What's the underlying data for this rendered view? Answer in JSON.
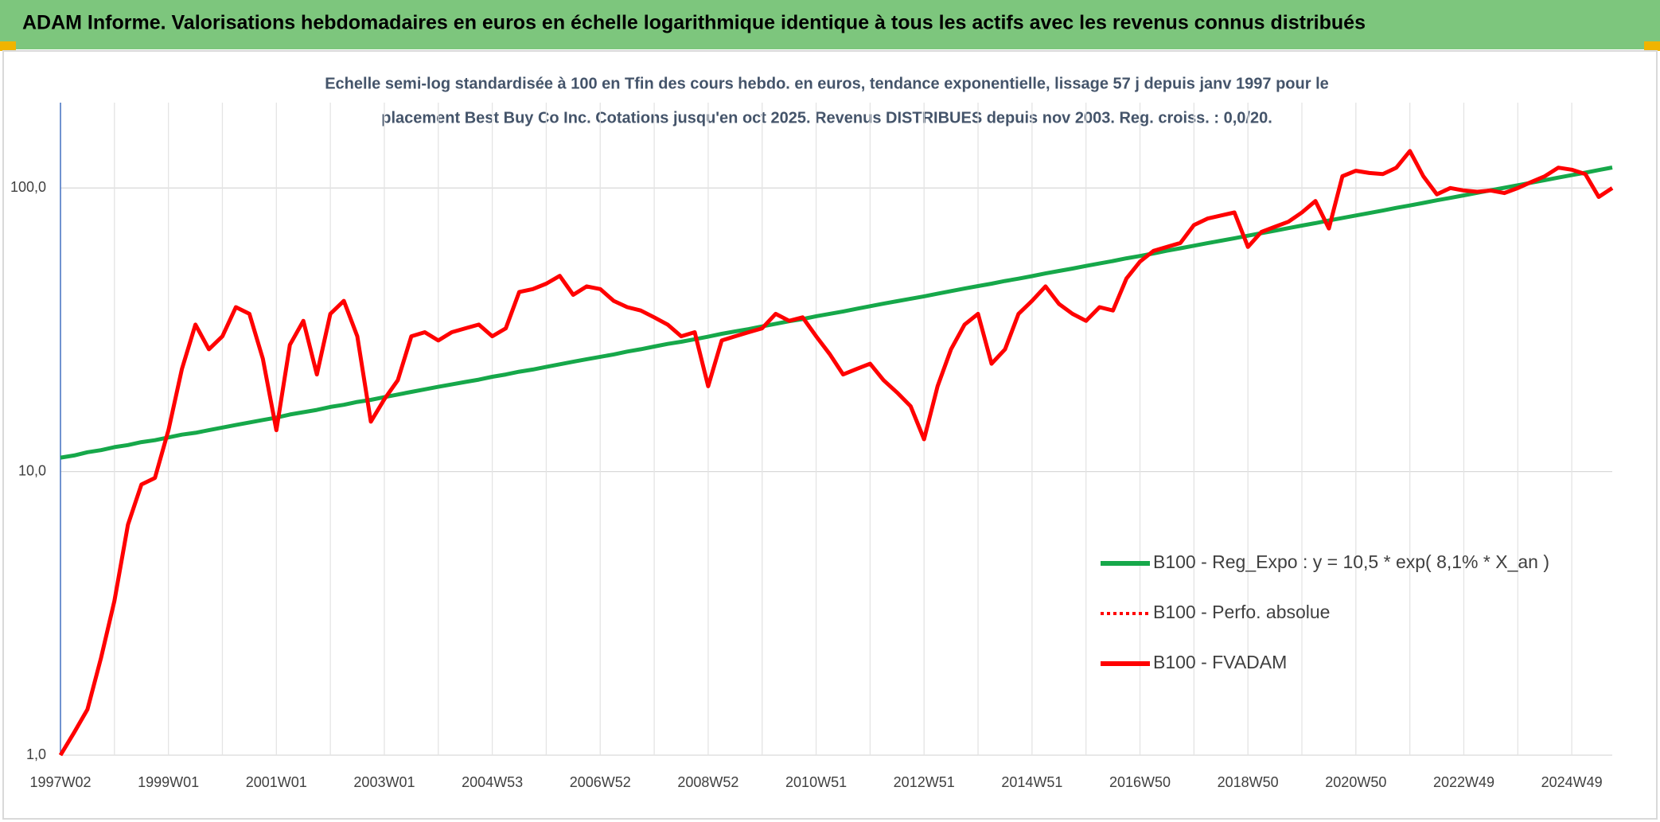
{
  "chart_data": {
    "type": "line",
    "title": "ADAM Informe. Valorisations hebdomadaires en euros en échelle logarithmique identique à tous les actifs avec les revenus connus distribués",
    "subtitle": [
      "Echelle semi-log standardisée à 100 en Tfin des cours hebdo. en euros, tendance exponentielle, lissage 57 j depuis janv 1997 pour le",
      "placement Best Buy Co Inc. Cotations jusqu'en oct 2025. Revenus DISTRIBUES depuis nov 2003. Reg. croiss. : 0,0/20."
    ],
    "categories": [
      "1997W02",
      null,
      null,
      null,
      null,
      null,
      null,
      null,
      "1999W01",
      null,
      null,
      null,
      null,
      null,
      null,
      null,
      "2001W01",
      null,
      null,
      null,
      null,
      null,
      null,
      null,
      "2003W01",
      null,
      null,
      null,
      null,
      null,
      null,
      null,
      "2004W53",
      null,
      null,
      null,
      null,
      null,
      null,
      null,
      "2006W52",
      null,
      null,
      null,
      null,
      null,
      null,
      null,
      "2008W52",
      null,
      null,
      null,
      null,
      null,
      null,
      null,
      "2010W51",
      null,
      null,
      null,
      null,
      null,
      null,
      null,
      "2012W51",
      null,
      null,
      null,
      null,
      null,
      null,
      null,
      "2014W51",
      null,
      null,
      null,
      null,
      null,
      null,
      null,
      "2016W50",
      null,
      null,
      null,
      null,
      null,
      null,
      null,
      "2018W50",
      null,
      null,
      null,
      null,
      null,
      null,
      null,
      "2020W50",
      null,
      null,
      null,
      null,
      null,
      null,
      null,
      "2022W49",
      null,
      null,
      null,
      null,
      null,
      null,
      null,
      "2024W49",
      null,
      null,
      null
    ],
    "series": [
      {
        "name": "B100 - Reg_Expo : y = 10,5 * exp( 8,1% *  X_an )",
        "color": "#16a84a",
        "style": "solid",
        "values": [
          11.2,
          11.4,
          11.7,
          11.9,
          12.2,
          12.4,
          12.7,
          12.9,
          13.2,
          13.5,
          13.7,
          14.0,
          14.3,
          14.6,
          14.9,
          15.2,
          15.5,
          15.9,
          16.2,
          16.5,
          16.9,
          17.2,
          17.6,
          17.9,
          18.3,
          18.7,
          19.1,
          19.5,
          19.9,
          20.3,
          20.7,
          21.1,
          21.6,
          22.0,
          22.5,
          22.9,
          23.4,
          23.9,
          24.4,
          24.9,
          25.4,
          25.9,
          26.5,
          27.0,
          27.6,
          28.2,
          28.7,
          29.3,
          29.9,
          30.6,
          31.2,
          31.8,
          32.5,
          33.2,
          33.9,
          34.5,
          35.3,
          36.0,
          36.7,
          37.5,
          38.3,
          39.1,
          39.9,
          40.7,
          41.5,
          42.4,
          43.3,
          44.2,
          45.1,
          46.0,
          47.0,
          47.9,
          48.9,
          50.0,
          51.0,
          52.0,
          53.1,
          54.2,
          55.3,
          56.5,
          57.6,
          58.8,
          60.1,
          61.3,
          62.6,
          63.9,
          65.2,
          66.5,
          67.9,
          69.3,
          70.7,
          72.2,
          73.7,
          75.2,
          76.8,
          78.4,
          80.0,
          81.6,
          83.3,
          85.1,
          86.8,
          88.6,
          90.5,
          92.3,
          94.2,
          96.2,
          98.2,
          100.2,
          102.3,
          104.4,
          106.6,
          108.8,
          111.0,
          113.3,
          115.7,
          118.1
        ]
      },
      {
        "name": "B100 - Perfo. absolue",
        "color": "#ff0000",
        "style": "dotted",
        "values": [
          1.0,
          1.2,
          1.45,
          2.2,
          3.5,
          6.5,
          9,
          9.5,
          14,
          23,
          33,
          27,
          30,
          38,
          36,
          25,
          14,
          28,
          34,
          22,
          36,
          40,
          30,
          15,
          18,
          21,
          30,
          31,
          29,
          31,
          32,
          33,
          30,
          32,
          43,
          44,
          46,
          49,
          42,
          45,
          44,
          40,
          38,
          37,
          35,
          33,
          30,
          31,
          20,
          29,
          30,
          31,
          32,
          36,
          34,
          35,
          30,
          26,
          22,
          23,
          24,
          21,
          19,
          17,
          13,
          20,
          27,
          33,
          36,
          24,
          27,
          36,
          40,
          45,
          39,
          36,
          34,
          38,
          37,
          48,
          55,
          60,
          62,
          64,
          74,
          78,
          80,
          82,
          62,
          70,
          73,
          76,
          82,
          90,
          72,
          110,
          115,
          113,
          112,
          118,
          135,
          110,
          95,
          100,
          98,
          97,
          98,
          96,
          100,
          105,
          110,
          118,
          116,
          112,
          93,
          100
        ]
      },
      {
        "name": "B100 - FVADAM",
        "color": "#ff0000",
        "style": "solid",
        "values": [
          1.0,
          1.2,
          1.45,
          2.2,
          3.5,
          6.5,
          9,
          9.5,
          14,
          23,
          33,
          27,
          30,
          38,
          36,
          25,
          14,
          28,
          34,
          22,
          36,
          40,
          30,
          15,
          18,
          21,
          30,
          31,
          29,
          31,
          32,
          33,
          30,
          32,
          43,
          44,
          46,
          49,
          42,
          45,
          44,
          40,
          38,
          37,
          35,
          33,
          30,
          31,
          20,
          29,
          30,
          31,
          32,
          36,
          34,
          35,
          30,
          26,
          22,
          23,
          24,
          21,
          19,
          17,
          13,
          20,
          27,
          33,
          36,
          24,
          27,
          36,
          40,
          45,
          39,
          36,
          34,
          38,
          37,
          48,
          55,
          60,
          62,
          64,
          74,
          78,
          80,
          82,
          62,
          70,
          73,
          76,
          82,
          90,
          72,
          110,
          115,
          113,
          112,
          118,
          135,
          110,
          95,
          100,
          98,
          97,
          98,
          96,
          100,
          105,
          110,
          118,
          116,
          112,
          93,
          100
        ]
      }
    ],
    "ylim": [
      1,
      200
    ],
    "yticks": [
      {
        "value": 1,
        "label": "1,0"
      },
      {
        "value": 10,
        "label": "10,0"
      },
      {
        "value": 100,
        "label": "100,0"
      }
    ],
    "log_y": true,
    "grid": true,
    "legend": "right"
  }
}
